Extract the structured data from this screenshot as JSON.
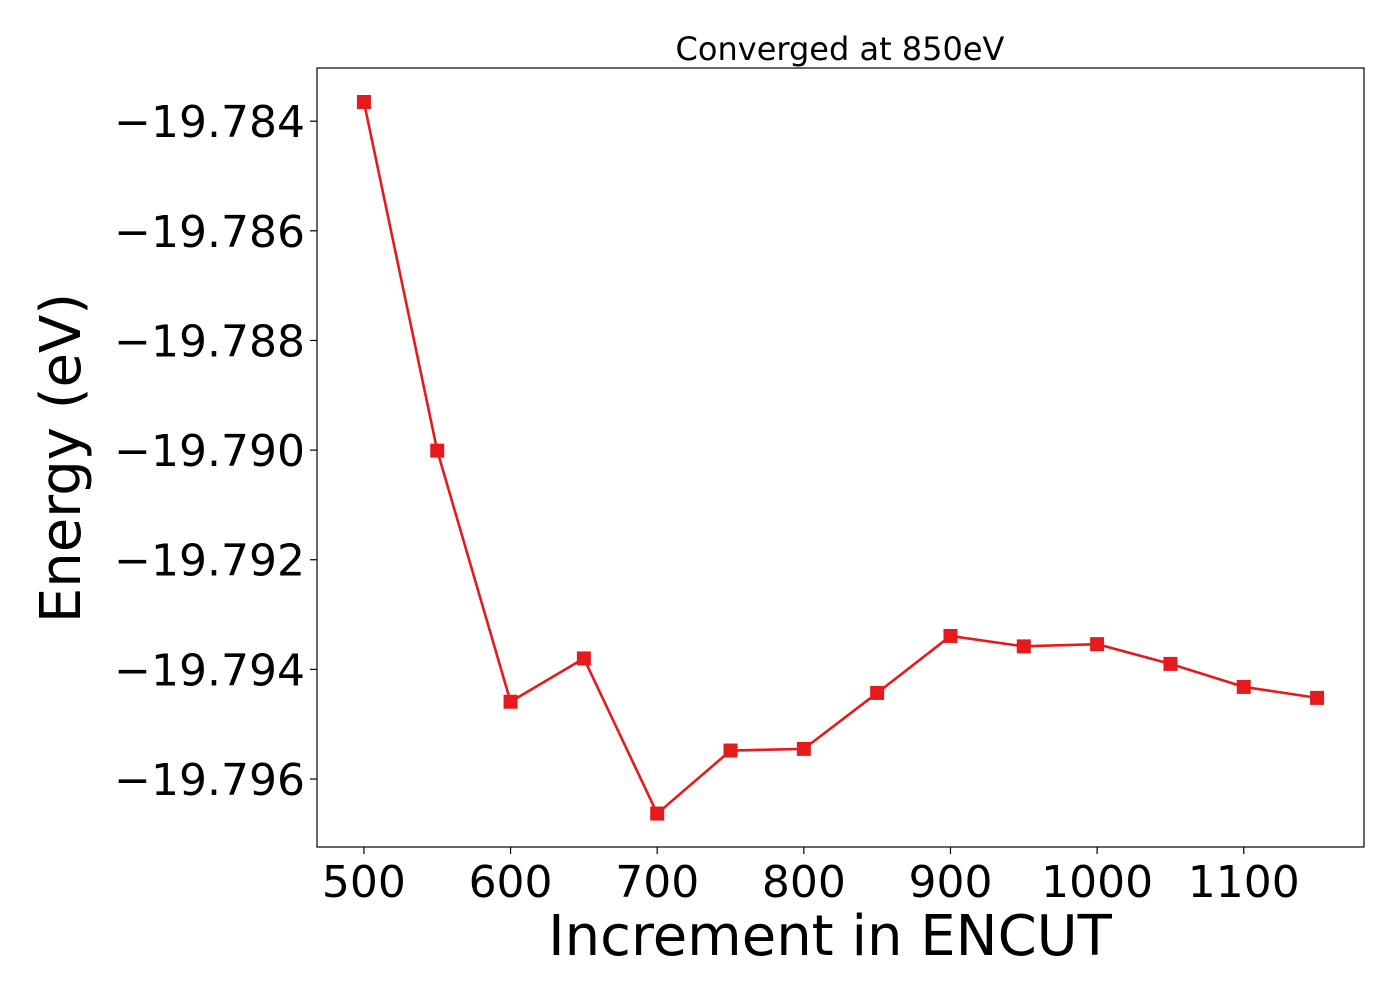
{
  "chart_data": {
    "type": "line",
    "title": "Converged at 850eV",
    "xlabel": "Increment in ENCUT",
    "ylabel": "Energy (eV)",
    "x": [
      500,
      550,
      600,
      650,
      700,
      750,
      800,
      850,
      900,
      950,
      1000,
      1050,
      1100,
      1150
    ],
    "series": [
      {
        "values": [
          -19.78365,
          -19.79001,
          -19.79459,
          -19.7938,
          -19.79663,
          -19.79548,
          -19.79545,
          -19.79443,
          -19.79339,
          -19.79358,
          -19.79354,
          -19.7939,
          -19.79432,
          -19.79452
        ],
        "color": "#e41a1c",
        "marker": "square"
      }
    ],
    "xticks": [
      500,
      600,
      700,
      800,
      900,
      1000,
      1100
    ],
    "yticks": [
      -19.784,
      -19.786,
      -19.788,
      -19.79,
      -19.792,
      -19.794,
      -19.796
    ],
    "xlim": [
      468,
      1182
    ],
    "ylim": [
      -19.79724,
      -19.78303
    ],
    "grid": false,
    "legend": "none"
  }
}
